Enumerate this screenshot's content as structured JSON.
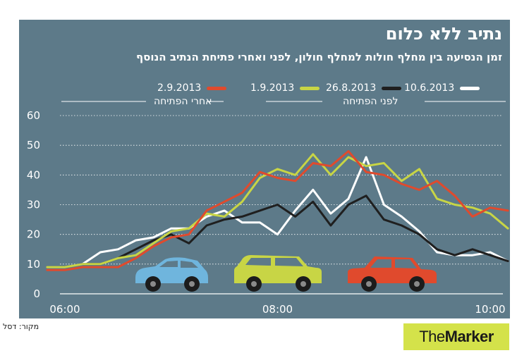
{
  "title": "נתיב ללא כלום",
  "subtitle": "זמן הנסיעה בין מחלף חולות למחלף חולון, לפני ואחרי פתיחת הנתיב הנוסף",
  "legend": {
    "series": [
      {
        "name": "10.6.2013",
        "color": "#ffffff"
      },
      {
        "name": "26.8.2013",
        "color": "#1f1f1f"
      },
      {
        "name": "1.9.2013",
        "color": "#c8d545"
      },
      {
        "name": "2.9.2013",
        "color": "#e04a2d"
      }
    ],
    "before_label": "לפני הפתיחה",
    "after_label": "אחרי הפתיחה"
  },
  "source": "מקור: דסל",
  "logo": {
    "part1": "The",
    "part2": "Marker"
  },
  "colors": {
    "panel": "#5d7a89",
    "grid": "#ffffff",
    "logo_bg": "#d4e24a"
  },
  "chart_data": {
    "type": "line",
    "title": "זמן הנסיעה בין מחלף חולות למחלף חולון, לפני ואחרי פתיחת הנתיב הנוסף",
    "xlabel": "",
    "ylabel": "",
    "ylim": [
      0,
      60
    ],
    "yticks": [
      0,
      10,
      20,
      30,
      40,
      50,
      60
    ],
    "xlim": [
      "06:00",
      "10:00"
    ],
    "xticks": [
      "06:00",
      "08:00",
      "10:00"
    ],
    "grid": "horizontal",
    "series": [
      {
        "name": "10.6.2013",
        "color": "#ffffff",
        "x": [
          "05:50",
          "06:00",
          "06:10",
          "06:20",
          "06:30",
          "06:40",
          "06:50",
          "07:00",
          "07:10",
          "07:20",
          "07:30",
          "07:40",
          "07:50",
          "08:00",
          "08:10",
          "08:20",
          "08:30",
          "08:40",
          "08:50",
          "09:00",
          "09:10",
          "09:20",
          "09:30",
          "09:40",
          "09:50",
          "10:00",
          "10:10"
        ],
        "values": [
          9,
          9,
          10,
          14,
          15,
          18,
          19,
          22,
          22,
          26,
          28,
          24,
          24,
          20,
          28,
          35,
          27,
          32,
          46,
          30,
          26,
          21,
          14,
          13,
          13,
          14,
          11
        ]
      },
      {
        "name": "26.8.2013",
        "color": "#1f1f1f",
        "x": [
          "05:50",
          "06:00",
          "06:10",
          "06:20",
          "06:30",
          "06:40",
          "06:50",
          "07:00",
          "07:10",
          "07:20",
          "07:30",
          "07:40",
          "07:50",
          "08:00",
          "08:10",
          "08:20",
          "08:30",
          "08:40",
          "08:50",
          "09:00",
          "09:10",
          "09:20",
          "09:30",
          "09:40",
          "09:50",
          "10:00",
          "10:10"
        ],
        "values": [
          9,
          9,
          10,
          10,
          12,
          15,
          18,
          20,
          17,
          23,
          25,
          26,
          28,
          30,
          26,
          31,
          23,
          30,
          33,
          25,
          23,
          20,
          15,
          13,
          15,
          13,
          11
        ]
      },
      {
        "name": "1.9.2013",
        "color": "#c8d545",
        "x": [
          "05:50",
          "06:00",
          "06:10",
          "06:20",
          "06:30",
          "06:40",
          "06:50",
          "07:00",
          "07:10",
          "07:20",
          "07:30",
          "07:40",
          "07:50",
          "08:00",
          "08:10",
          "08:20",
          "08:30",
          "08:40",
          "08:50",
          "09:00",
          "09:10",
          "09:20",
          "09:30",
          "09:40",
          "09:50",
          "10:00",
          "10:10"
        ],
        "values": [
          9,
          9,
          10,
          10,
          12,
          13,
          17,
          21,
          22,
          27,
          26,
          31,
          39,
          42,
          40,
          47,
          40,
          46,
          43,
          44,
          38,
          42,
          32,
          30,
          29,
          27,
          22
        ]
      },
      {
        "name": "2.9.2013",
        "color": "#e04a2d",
        "x": [
          "05:50",
          "06:00",
          "06:10",
          "06:20",
          "06:30",
          "06:40",
          "06:50",
          "07:00",
          "07:10",
          "07:20",
          "07:30",
          "07:40",
          "07:50",
          "08:00",
          "08:10",
          "08:20",
          "08:30",
          "08:40",
          "08:50",
          "09:00",
          "09:10",
          "09:20",
          "09:30",
          "09:40",
          "09:50",
          "10:00",
          "10:10"
        ],
        "values": [
          8,
          8,
          9,
          9,
          9,
          12,
          16,
          19,
          20,
          28,
          31,
          34,
          41,
          39,
          38,
          44,
          43,
          48,
          41,
          40,
          37,
          35,
          38,
          33,
          26,
          29,
          28
        ]
      }
    ],
    "annotations": [
      {
        "type": "car",
        "color": "#6fb5dd"
      },
      {
        "type": "car",
        "color": "#c8d545"
      },
      {
        "type": "car",
        "color": "#e04a2d"
      }
    ]
  }
}
